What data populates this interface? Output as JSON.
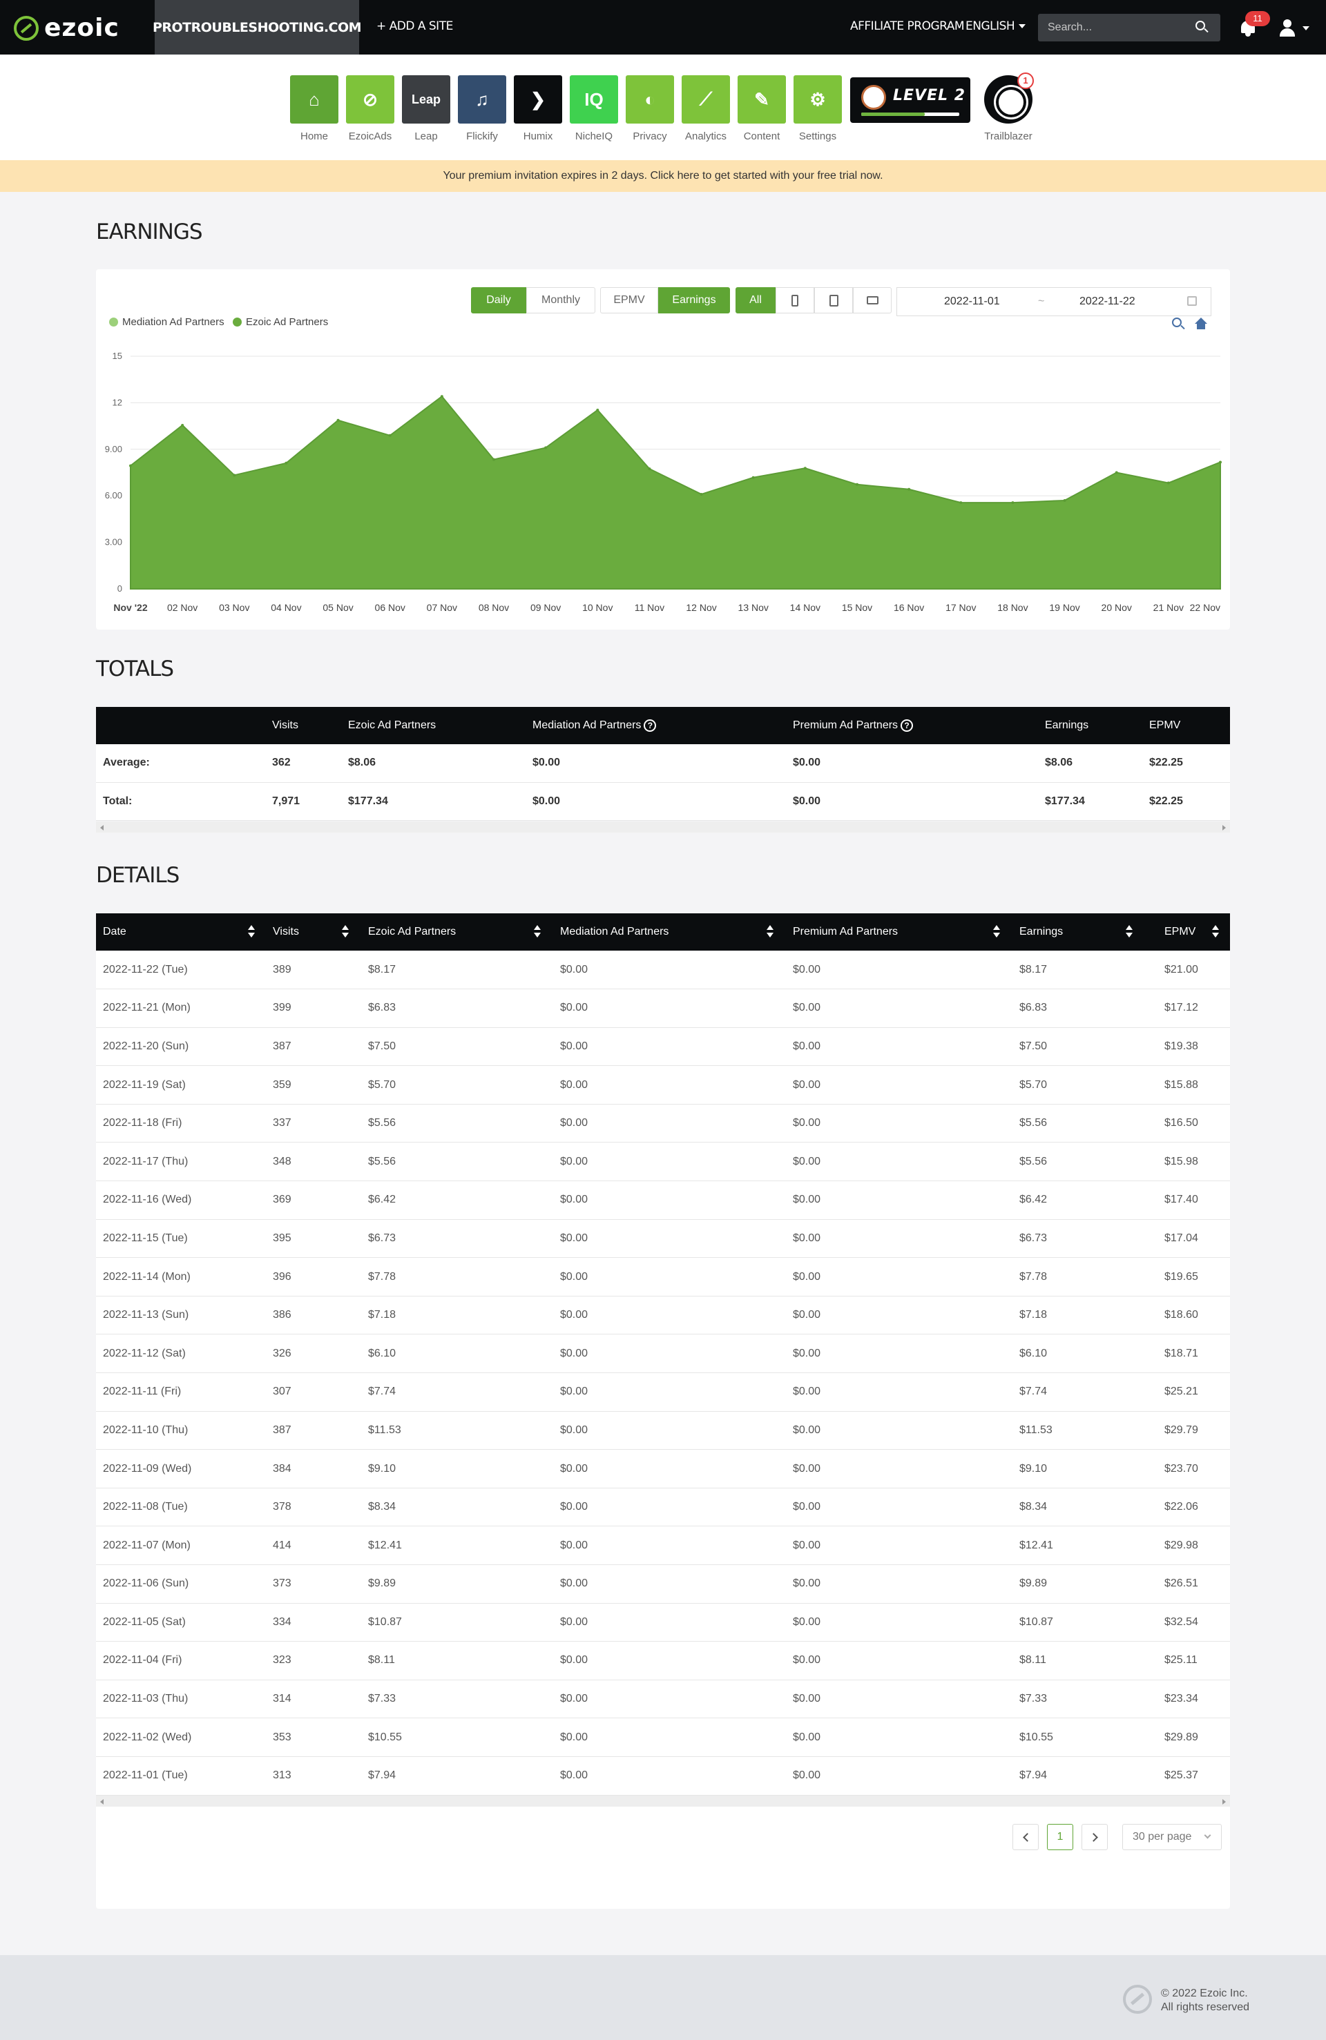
{
  "brand": {
    "name": "ezoic",
    "accent": "#5fa534"
  },
  "header": {
    "site": "PROTROUBLESHOOTING.COM",
    "add_site": "+ ADD A SITE",
    "affiliate": "AFFILIATE PROGRAM",
    "language": "ENGLISH",
    "search_placeholder": "Search...",
    "notifications": "11"
  },
  "apps": [
    {
      "label": "Home",
      "icon": "home-icon",
      "color": "#5fa534",
      "text": "⌂"
    },
    {
      "label": "EzoicAds",
      "icon": "ezoicads-icon",
      "color": "#7ec33a",
      "text": "⊘"
    },
    {
      "label": "Leap",
      "icon": "leap-icon",
      "color": "#3b3e42",
      "text": "Leap"
    },
    {
      "label": "Flickify",
      "icon": "flickify-icon",
      "color": "#334d6e",
      "text": "♫"
    },
    {
      "label": "Humix",
      "icon": "humix-icon",
      "color": "#0b0d0f",
      "text": "❯"
    },
    {
      "label": "NicheIQ",
      "icon": "nicheiq-icon",
      "color": "#3fd14f",
      "text": "IQ"
    },
    {
      "label": "Privacy",
      "icon": "privacy-icon",
      "color": "#7ec33a",
      "text": "◐"
    },
    {
      "label": "Analytics",
      "icon": "analytics-icon",
      "color": "#7ec33a",
      "text": "⟋"
    },
    {
      "label": "Content",
      "icon": "content-icon",
      "color": "#7ec33a",
      "text": "✎"
    },
    {
      "label": "Settings",
      "icon": "settings-icon",
      "color": "#7ec33a",
      "text": "⚙"
    }
  ],
  "level": {
    "text": "LEVEL 2",
    "progress": 0.65
  },
  "trailblazer": {
    "label": "Trailblazer",
    "badge": "1"
  },
  "banner": "Your premium invitation expires in 2 days. Click here to get started with your free trial now.",
  "earnings": {
    "title": "EARNINGS",
    "buttons": {
      "daily": "Daily",
      "monthly": "Monthly",
      "epmv": "EPMV",
      "earnings": "Earnings",
      "all": "All"
    },
    "date_from": "2022-11-01",
    "date_sep": "~",
    "date_to": "2022-11-22",
    "legend": [
      "Mediation Ad Partners",
      "Ezoic Ad Partners"
    ]
  },
  "chart_data": {
    "type": "area",
    "x": [
      "Nov '22",
      "02 Nov",
      "03 Nov",
      "04 Nov",
      "05 Nov",
      "06 Nov",
      "07 Nov",
      "08 Nov",
      "09 Nov",
      "10 Nov",
      "11 Nov",
      "12 Nov",
      "13 Nov",
      "14 Nov",
      "15 Nov",
      "16 Nov",
      "17 Nov",
      "18 Nov",
      "19 Nov",
      "20 Nov",
      "21 Nov",
      "22 Nov"
    ],
    "series": [
      {
        "name": "Mediation Ad Partners",
        "color": "#9cd07a",
        "values": [
          0,
          0,
          0,
          0,
          0,
          0,
          0,
          0,
          0,
          0,
          0,
          0,
          0,
          0,
          0,
          0,
          0,
          0,
          0,
          0,
          0,
          0
        ]
      },
      {
        "name": "Ezoic Ad Partners",
        "color": "#6aac3e",
        "values": [
          7.94,
          10.55,
          7.33,
          8.11,
          10.87,
          9.89,
          12.41,
          8.34,
          9.1,
          11.53,
          7.74,
          6.1,
          7.18,
          7.78,
          6.73,
          6.42,
          5.56,
          5.56,
          5.7,
          7.5,
          6.83,
          8.17
        ]
      }
    ],
    "yticks": [
      "0",
      "3.00",
      "6.00",
      "9.00",
      "12",
      "15"
    ],
    "ylim": [
      0,
      15
    ],
    "legend_position": "top-left",
    "grid": true
  },
  "totals": {
    "title": "TOTALS",
    "headers": [
      "",
      "Visits",
      "Ezoic Ad Partners",
      "Mediation Ad Partners",
      "Premium Ad Partners",
      "Earnings",
      "EPMV"
    ],
    "rows": [
      [
        "Average:",
        "362",
        "$8.06",
        "$0.00",
        "$0.00",
        "$8.06",
        "$22.25"
      ],
      [
        "Total:",
        "7,971",
        "$177.34",
        "$0.00",
        "$0.00",
        "$177.34",
        "$22.25"
      ]
    ]
  },
  "details": {
    "title": "DETAILS",
    "headers": [
      "Date",
      "Visits",
      "Ezoic Ad Partners",
      "Mediation Ad Partners",
      "Premium Ad Partners",
      "Earnings",
      "EPMV"
    ],
    "rows": [
      [
        "2022-11-22 (Tue)",
        "389",
        "$8.17",
        "$0.00",
        "$0.00",
        "$8.17",
        "$21.00"
      ],
      [
        "2022-11-21 (Mon)",
        "399",
        "$6.83",
        "$0.00",
        "$0.00",
        "$6.83",
        "$17.12"
      ],
      [
        "2022-11-20 (Sun)",
        "387",
        "$7.50",
        "$0.00",
        "$0.00",
        "$7.50",
        "$19.38"
      ],
      [
        "2022-11-19 (Sat)",
        "359",
        "$5.70",
        "$0.00",
        "$0.00",
        "$5.70",
        "$15.88"
      ],
      [
        "2022-11-18 (Fri)",
        "337",
        "$5.56",
        "$0.00",
        "$0.00",
        "$5.56",
        "$16.50"
      ],
      [
        "2022-11-17 (Thu)",
        "348",
        "$5.56",
        "$0.00",
        "$0.00",
        "$5.56",
        "$15.98"
      ],
      [
        "2022-11-16 (Wed)",
        "369",
        "$6.42",
        "$0.00",
        "$0.00",
        "$6.42",
        "$17.40"
      ],
      [
        "2022-11-15 (Tue)",
        "395",
        "$6.73",
        "$0.00",
        "$0.00",
        "$6.73",
        "$17.04"
      ],
      [
        "2022-11-14 (Mon)",
        "396",
        "$7.78",
        "$0.00",
        "$0.00",
        "$7.78",
        "$19.65"
      ],
      [
        "2022-11-13 (Sun)",
        "386",
        "$7.18",
        "$0.00",
        "$0.00",
        "$7.18",
        "$18.60"
      ],
      [
        "2022-11-12 (Sat)",
        "326",
        "$6.10",
        "$0.00",
        "$0.00",
        "$6.10",
        "$18.71"
      ],
      [
        "2022-11-11 (Fri)",
        "307",
        "$7.74",
        "$0.00",
        "$0.00",
        "$7.74",
        "$25.21"
      ],
      [
        "2022-11-10 (Thu)",
        "387",
        "$11.53",
        "$0.00",
        "$0.00",
        "$11.53",
        "$29.79"
      ],
      [
        "2022-11-09 (Wed)",
        "384",
        "$9.10",
        "$0.00",
        "$0.00",
        "$9.10",
        "$23.70"
      ],
      [
        "2022-11-08 (Tue)",
        "378",
        "$8.34",
        "$0.00",
        "$0.00",
        "$8.34",
        "$22.06"
      ],
      [
        "2022-11-07 (Mon)",
        "414",
        "$12.41",
        "$0.00",
        "$0.00",
        "$12.41",
        "$29.98"
      ],
      [
        "2022-11-06 (Sun)",
        "373",
        "$9.89",
        "$0.00",
        "$0.00",
        "$9.89",
        "$26.51"
      ],
      [
        "2022-11-05 (Sat)",
        "334",
        "$10.87",
        "$0.00",
        "$0.00",
        "$10.87",
        "$32.54"
      ],
      [
        "2022-11-04 (Fri)",
        "323",
        "$8.11",
        "$0.00",
        "$0.00",
        "$8.11",
        "$25.11"
      ],
      [
        "2022-11-03 (Thu)",
        "314",
        "$7.33",
        "$0.00",
        "$0.00",
        "$7.33",
        "$23.34"
      ],
      [
        "2022-11-02 (Wed)",
        "353",
        "$10.55",
        "$0.00",
        "$0.00",
        "$10.55",
        "$29.89"
      ],
      [
        "2022-11-01 (Tue)",
        "313",
        "$7.94",
        "$0.00",
        "$0.00",
        "$7.94",
        "$25.37"
      ]
    ]
  },
  "pagination": {
    "current": "1",
    "per_page": "30 per page"
  },
  "footer": {
    "copyright": "© 2022 Ezoic Inc.",
    "rights": "All rights reserved"
  }
}
